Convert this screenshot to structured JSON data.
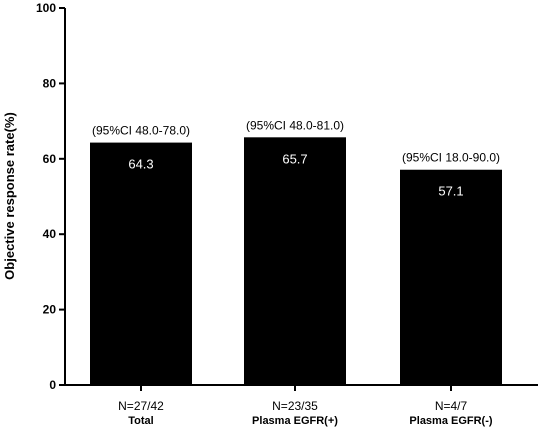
{
  "chart_data": {
    "type": "bar",
    "title": "",
    "xlabel": "",
    "ylabel": "Objective response rate(%)",
    "ylim": [
      0,
      100
    ],
    "yticks": [
      0,
      20,
      40,
      60,
      80,
      100
    ],
    "grid": false,
    "bar_color": "#000000",
    "data_label_color": "#ffffff",
    "categories": [
      {
        "n_label": "N=27/42",
        "name": "Total"
      },
      {
        "n_label": "N=23/35",
        "name": "Plasma EGFR(+)"
      },
      {
        "n_label": "N=4/7",
        "name": "Plasma EGFR(-)"
      }
    ],
    "values": [
      64.3,
      65.7,
      57.1
    ],
    "value_labels": [
      "64.3",
      "65.7",
      "57.1"
    ],
    "ci_labels": [
      "(95%CI 48.0-78.0)",
      "(95%CI 48.0-81.0)",
      "(95%CI 18.0-90.0)"
    ]
  }
}
